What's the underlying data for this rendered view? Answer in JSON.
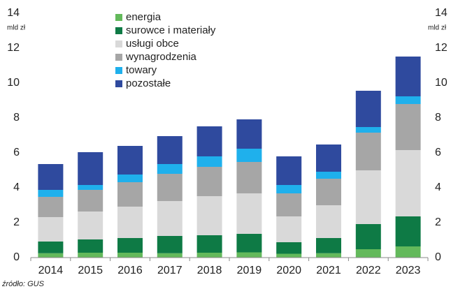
{
  "chart_data": {
    "type": "stacked_bar",
    "ylabel": "mld zł",
    "y2label": "mld zł",
    "categories": [
      "2014",
      "2015",
      "2016",
      "2017",
      "2018",
      "2019",
      "2020",
      "2021",
      "2022",
      "2023"
    ],
    "series": [
      {
        "name": "energia",
        "color": "#63b95b",
        "values": [
          0.25,
          0.28,
          0.28,
          0.25,
          0.28,
          0.3,
          0.22,
          0.25,
          0.48,
          0.64
        ]
      },
      {
        "name": "surowce i materiały",
        "color": "#0e7a45",
        "values": [
          0.67,
          0.76,
          0.84,
          0.99,
          1.0,
          1.06,
          0.66,
          0.87,
          1.44,
          1.72
        ]
      },
      {
        "name": "usługi obce",
        "color": "#d9d9d9",
        "values": [
          1.4,
          1.6,
          1.8,
          2.0,
          2.24,
          2.32,
          1.48,
          1.88,
          3.08,
          3.8
        ]
      },
      {
        "name": "wynagrodzenia",
        "color": "#a6a6a6",
        "values": [
          1.16,
          1.24,
          1.4,
          1.56,
          1.68,
          1.8,
          1.32,
          1.52,
          2.16,
          2.64
        ]
      },
      {
        "name": "towary",
        "color": "#1fb0ec",
        "values": [
          0.4,
          0.28,
          0.44,
          0.56,
          0.6,
          0.76,
          0.48,
          0.4,
          0.32,
          0.44
        ]
      },
      {
        "name": "pozostałe",
        "color": "#2f4a9e",
        "values": [
          1.48,
          1.88,
          1.64,
          1.6,
          1.72,
          1.68,
          1.64,
          1.56,
          2.08,
          2.28
        ]
      }
    ],
    "ylim": [
      0,
      14
    ],
    "yticks": [
      0,
      2,
      4,
      6,
      8,
      10,
      12,
      14
    ],
    "y2lim": [
      0,
      14
    ],
    "y2ticks": [
      0,
      2,
      4,
      6,
      8,
      10,
      12,
      14
    ],
    "grid": false,
    "source": "źródło: GUS"
  }
}
